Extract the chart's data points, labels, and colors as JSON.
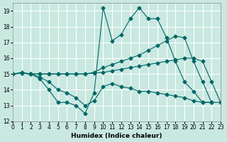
{
  "xlabel": "Humidex (Indice chaleur)",
  "xlim": [
    0,
    23
  ],
  "ylim": [
    12,
    19.5
  ],
  "yticks": [
    12,
    13,
    14,
    15,
    16,
    17,
    18,
    19
  ],
  "xticks": [
    0,
    1,
    2,
    3,
    4,
    5,
    6,
    7,
    8,
    9,
    10,
    11,
    12,
    13,
    14,
    15,
    16,
    17,
    18,
    19,
    20,
    21,
    22,
    23
  ],
  "bg_color": "#c8e8e0",
  "line_color": "#006666",
  "grid_color": "#ffffff",
  "s0x": [
    0,
    1,
    2,
    3,
    4,
    5,
    6,
    7,
    8,
    9,
    10,
    11,
    12,
    13,
    14,
    15,
    16,
    17,
    18,
    19,
    20,
    21,
    22
  ],
  "s0y": [
    15.0,
    15.1,
    15.0,
    14.7,
    14.0,
    13.2,
    13.2,
    13.0,
    12.5,
    13.8,
    19.2,
    17.1,
    17.5,
    18.5,
    19.2,
    18.5,
    18.5,
    17.3,
    15.8,
    14.5,
    13.9,
    13.2,
    13.2
  ],
  "s1x": [
    0,
    1,
    2,
    3,
    4,
    5,
    6,
    7,
    8,
    9,
    10,
    11,
    12,
    13,
    14,
    15,
    16,
    17,
    18,
    19,
    20,
    21,
    22,
    23
  ],
  "s1y": [
    15.0,
    15.05,
    15.0,
    15.0,
    15.0,
    15.0,
    15.0,
    15.0,
    15.0,
    15.05,
    15.1,
    15.2,
    15.3,
    15.4,
    15.5,
    15.6,
    15.7,
    15.8,
    15.9,
    16.0,
    16.0,
    15.8,
    14.5,
    13.2
  ],
  "s2x": [
    0,
    1,
    2,
    3,
    4,
    5,
    6,
    7,
    8,
    9,
    10,
    11,
    12,
    13,
    14,
    15,
    16,
    17,
    18,
    19,
    20,
    21,
    22,
    23
  ],
  "s2y": [
    15.0,
    15.05,
    15.0,
    15.0,
    15.0,
    15.0,
    15.0,
    15.0,
    15.0,
    15.1,
    15.4,
    15.6,
    15.8,
    16.0,
    16.2,
    16.5,
    16.8,
    17.1,
    17.4,
    17.3,
    15.8,
    14.5,
    13.2,
    13.2
  ],
  "s3x": [
    0,
    1,
    2,
    3,
    4,
    5,
    6,
    7,
    8,
    9,
    10,
    11,
    12,
    13,
    14,
    15,
    16,
    17,
    18,
    19,
    20,
    21,
    22
  ],
  "s3y": [
    15.0,
    15.05,
    15.0,
    14.8,
    14.5,
    14.0,
    13.8,
    13.5,
    13.0,
    13.3,
    14.2,
    14.4,
    14.2,
    14.1,
    13.9,
    13.9,
    13.8,
    13.7,
    13.6,
    13.5,
    13.3,
    13.2,
    13.2
  ]
}
